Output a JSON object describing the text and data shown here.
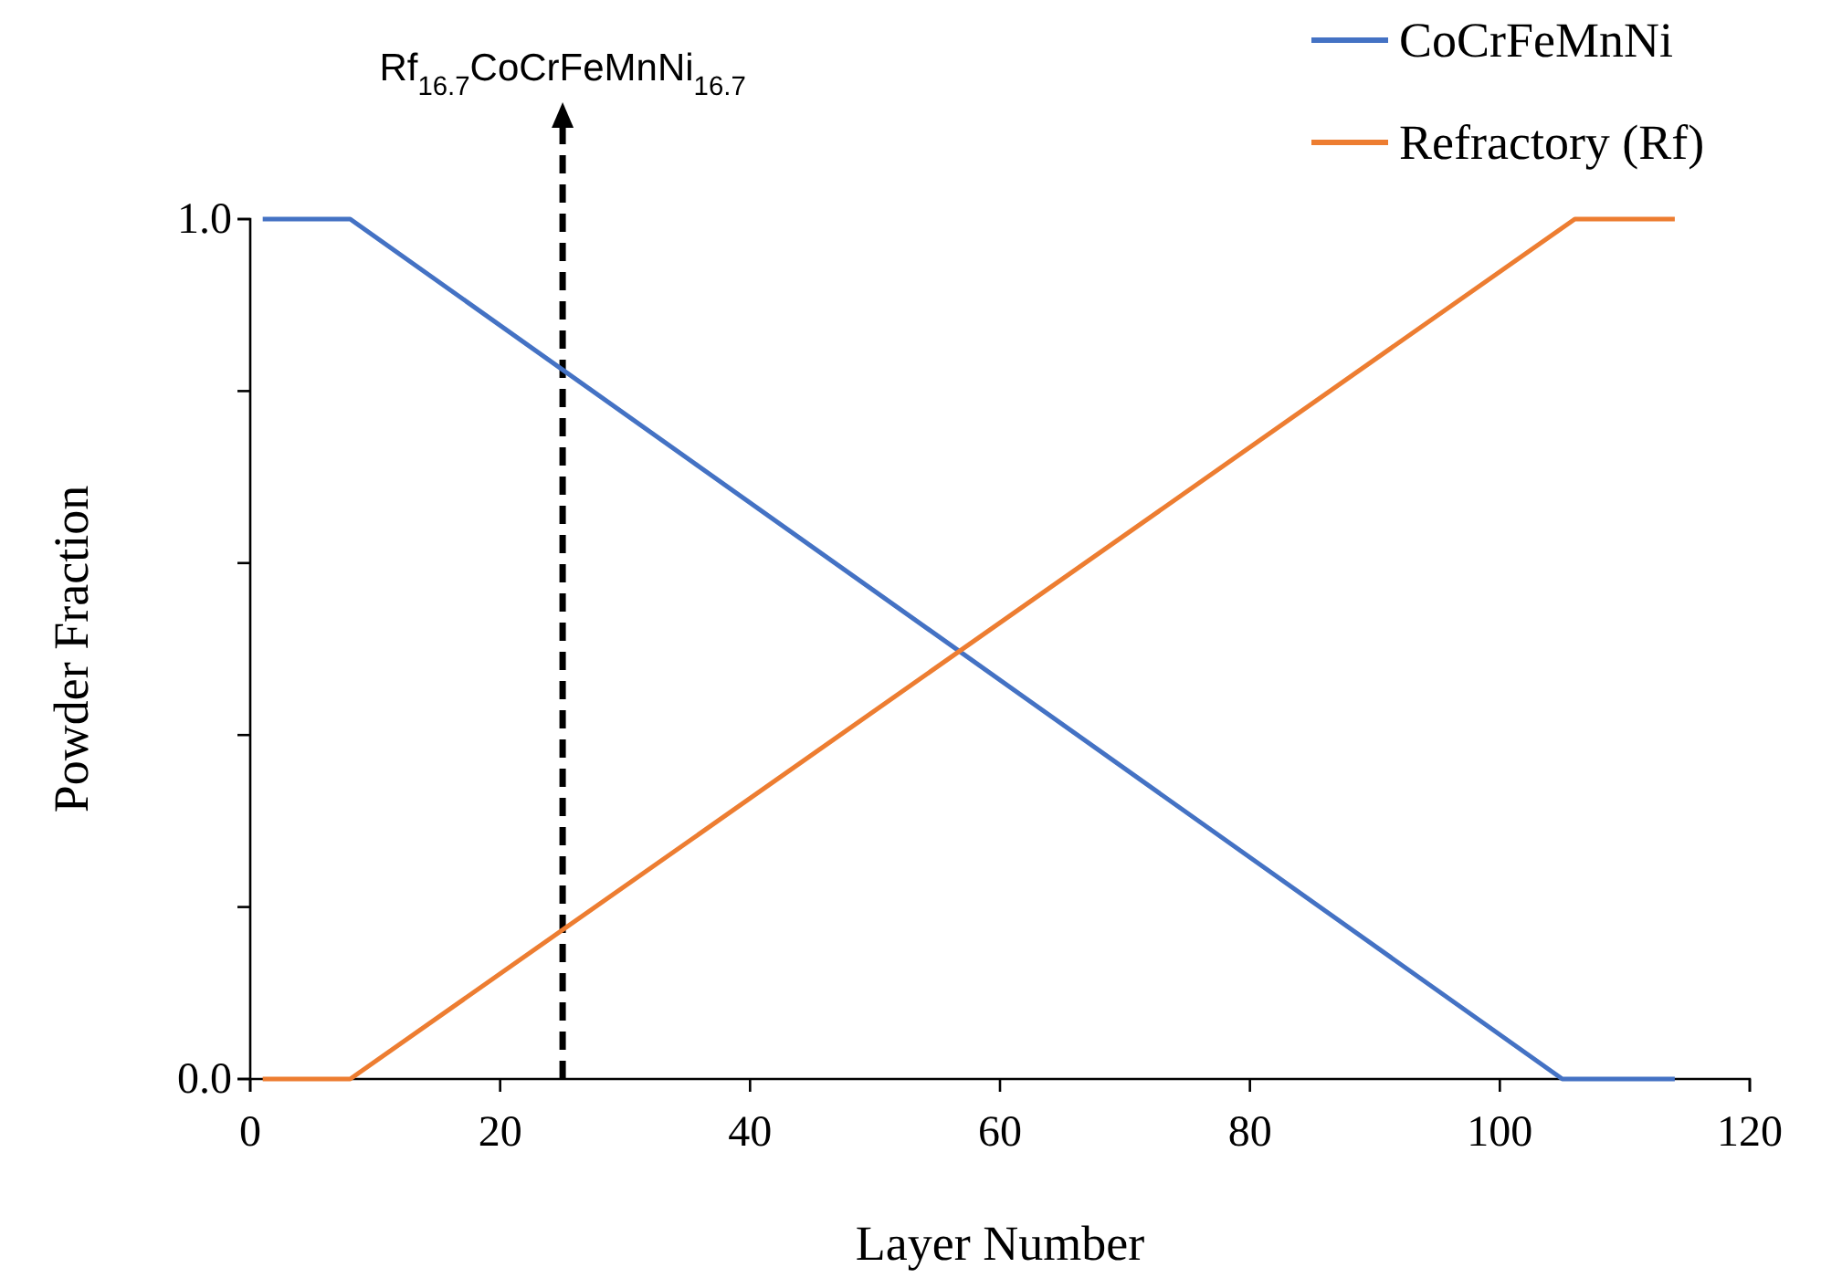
{
  "chart_data": {
    "type": "line",
    "xlabel": "Layer Number",
    "ylabel": "Powder Fraction",
    "series": [
      {
        "name": "CoCrFeMnNi",
        "color": "#4472c4",
        "x": [
          1,
          8,
          105,
          114
        ],
        "values": [
          1.0,
          1.0,
          0.0,
          0.0
        ]
      },
      {
        "name": "Refractory (Rf)",
        "color": "#ed7d31",
        "x": [
          1,
          8,
          106,
          114
        ],
        "values": [
          0.0,
          0.0,
          1.0,
          1.0
        ]
      }
    ],
    "xlim": [
      0,
      120
    ],
    "xticks": [
      0,
      20,
      40,
      60,
      80,
      100,
      120
    ],
    "ylim": [
      0,
      1
    ],
    "yticks": [
      {
        "value": 0,
        "label": "0.0"
      },
      {
        "value": 0.2,
        "label": null
      },
      {
        "value": 0.4,
        "label": null
      },
      {
        "value": 0.6,
        "label": null
      },
      {
        "value": 0.8,
        "label": null
      },
      {
        "value": 1,
        "label": "1.0"
      }
    ],
    "ref_lines": [
      {
        "axis": "x",
        "value": 25,
        "label": "Rf$_{16.7}$CoCrFeMnNi$_{16.7}$",
        "color": "#000000",
        "line_style": "dashed"
      }
    ],
    "legend": "top right",
    "grid": false,
    "marker": "none",
    "line_style": "solid"
  }
}
